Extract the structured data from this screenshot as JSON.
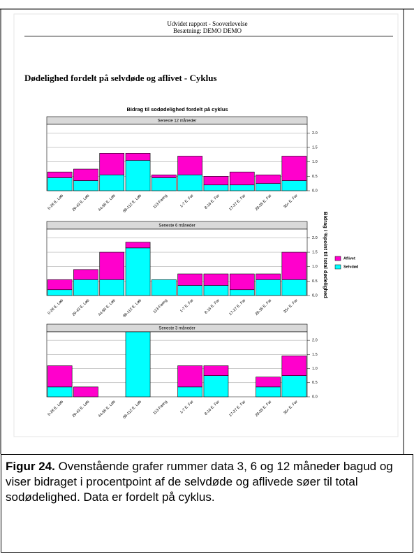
{
  "header": {
    "line1": "Udvidet rapport - Sooverlevelse",
    "line2": "Besætning: DEMO DEMO"
  },
  "section_title": "Dødelighed fordelt på selvdøde og aflivet - Cyklus",
  "figure": {
    "title": "Bidrag til sodødelighed fordelt på cyklus",
    "y_label": "Bidrag i %point til total dødelighed"
  },
  "chart_data": [
    {
      "type": "stacked_bar",
      "title": "Seneste 12 måneder",
      "categories": [
        "0-28 E. Løb",
        "29-43 E. Løb",
        "44-85 E. Løb",
        "86-112 E. Løb",
        "113-Faring",
        "1-7 E. Far",
        "8-16 E. Far",
        "17-27 E. Far",
        "28-35 E. Far",
        "35< E. Far"
      ],
      "series": [
        {
          "name": "Selvdød",
          "color": "#00ffff",
          "values": [
            0.45,
            0.35,
            0.55,
            1.05,
            0.45,
            0.55,
            0.2,
            0.2,
            0.25,
            0.35
          ]
        },
        {
          "name": "Aflivet",
          "color": "#ff00cc",
          "values": [
            0.2,
            0.4,
            0.75,
            0.25,
            0.1,
            0.65,
            0.3,
            0.45,
            0.3,
            0.85
          ]
        }
      ],
      "ylim": [
        0,
        2.3
      ],
      "yticks": [
        {
          "value": 0,
          "label": "0.0"
        },
        {
          "value": 0.5,
          "label": "0.5"
        },
        {
          "value": 1,
          "label": "1.0"
        },
        {
          "value": 1.5,
          "label": "1.5"
        },
        {
          "value": 2,
          "label": "2.0"
        }
      ]
    },
    {
      "type": "stacked_bar",
      "title": "Seneste 6 måneder",
      "categories": [
        "0-28 E. Løb",
        "29-43 E. Løb",
        "44-85 E. Løb",
        "86-112 E. Løb",
        "113-Faring",
        "1-7 E. Far",
        "8-16 E. Far",
        "17-27 E. Far",
        "28-35 E. Far",
        "35< E. Far"
      ],
      "series": [
        {
          "name": "Selvdød",
          "color": "#00ffff",
          "values": [
            0.2,
            0.55,
            0.55,
            1.65,
            0.55,
            0.35,
            0.35,
            0.2,
            0.55,
            0.55
          ]
        },
        {
          "name": "Aflivet",
          "color": "#ff00cc",
          "values": [
            0.35,
            0.35,
            0.95,
            0.2,
            0,
            0.4,
            0.4,
            0.55,
            0.2,
            0.95
          ]
        }
      ],
      "ylim": [
        0,
        2.3
      ],
      "yticks": [
        {
          "value": 0,
          "label": "0.0"
        },
        {
          "value": 0.5,
          "label": "0.5"
        },
        {
          "value": 1,
          "label": "1.0"
        },
        {
          "value": 1.5,
          "label": "1.5"
        },
        {
          "value": 2,
          "label": "2.0"
        }
      ]
    },
    {
      "type": "stacked_bar",
      "title": "Seneste 3 måneder",
      "categories": [
        "0-28 E. Løb",
        "29-43 E. Løb",
        "44-85 E. Løb",
        "86-112 E. Løb",
        "113-Faring",
        "1-7 E. Far",
        "8-16 E. Far",
        "17-27 E. Far",
        "28-35 E. Far",
        "35< E. Far"
      ],
      "series": [
        {
          "name": "Selvdød",
          "color": "#00ffff",
          "values": [
            0.35,
            0,
            0,
            2.3,
            0,
            0.35,
            0.75,
            0,
            0.35,
            0.75
          ]
        },
        {
          "name": "Aflivet",
          "color": "#ff00cc",
          "values": [
            0.75,
            0.35,
            0,
            0,
            0,
            0.75,
            0.35,
            0,
            0.35,
            0.7
          ]
        }
      ],
      "ylim": [
        0,
        2.3
      ],
      "yticks": [
        {
          "value": 0,
          "label": "0.0"
        },
        {
          "value": 0.5,
          "label": "0.5"
        },
        {
          "value": 1,
          "label": "1.0"
        },
        {
          "value": 1.5,
          "label": "1.5"
        },
        {
          "value": 2,
          "label": "2.0"
        }
      ]
    }
  ],
  "caption": {
    "label": "Figur 24.",
    "text": "Ovenstående grafer rummer data 3, 6 og 12 måneder bagud og viser bidraget i procentpoint af de selvdøde og aflivede søer til total sodødelighed. Data er fordelt på cyklus."
  }
}
